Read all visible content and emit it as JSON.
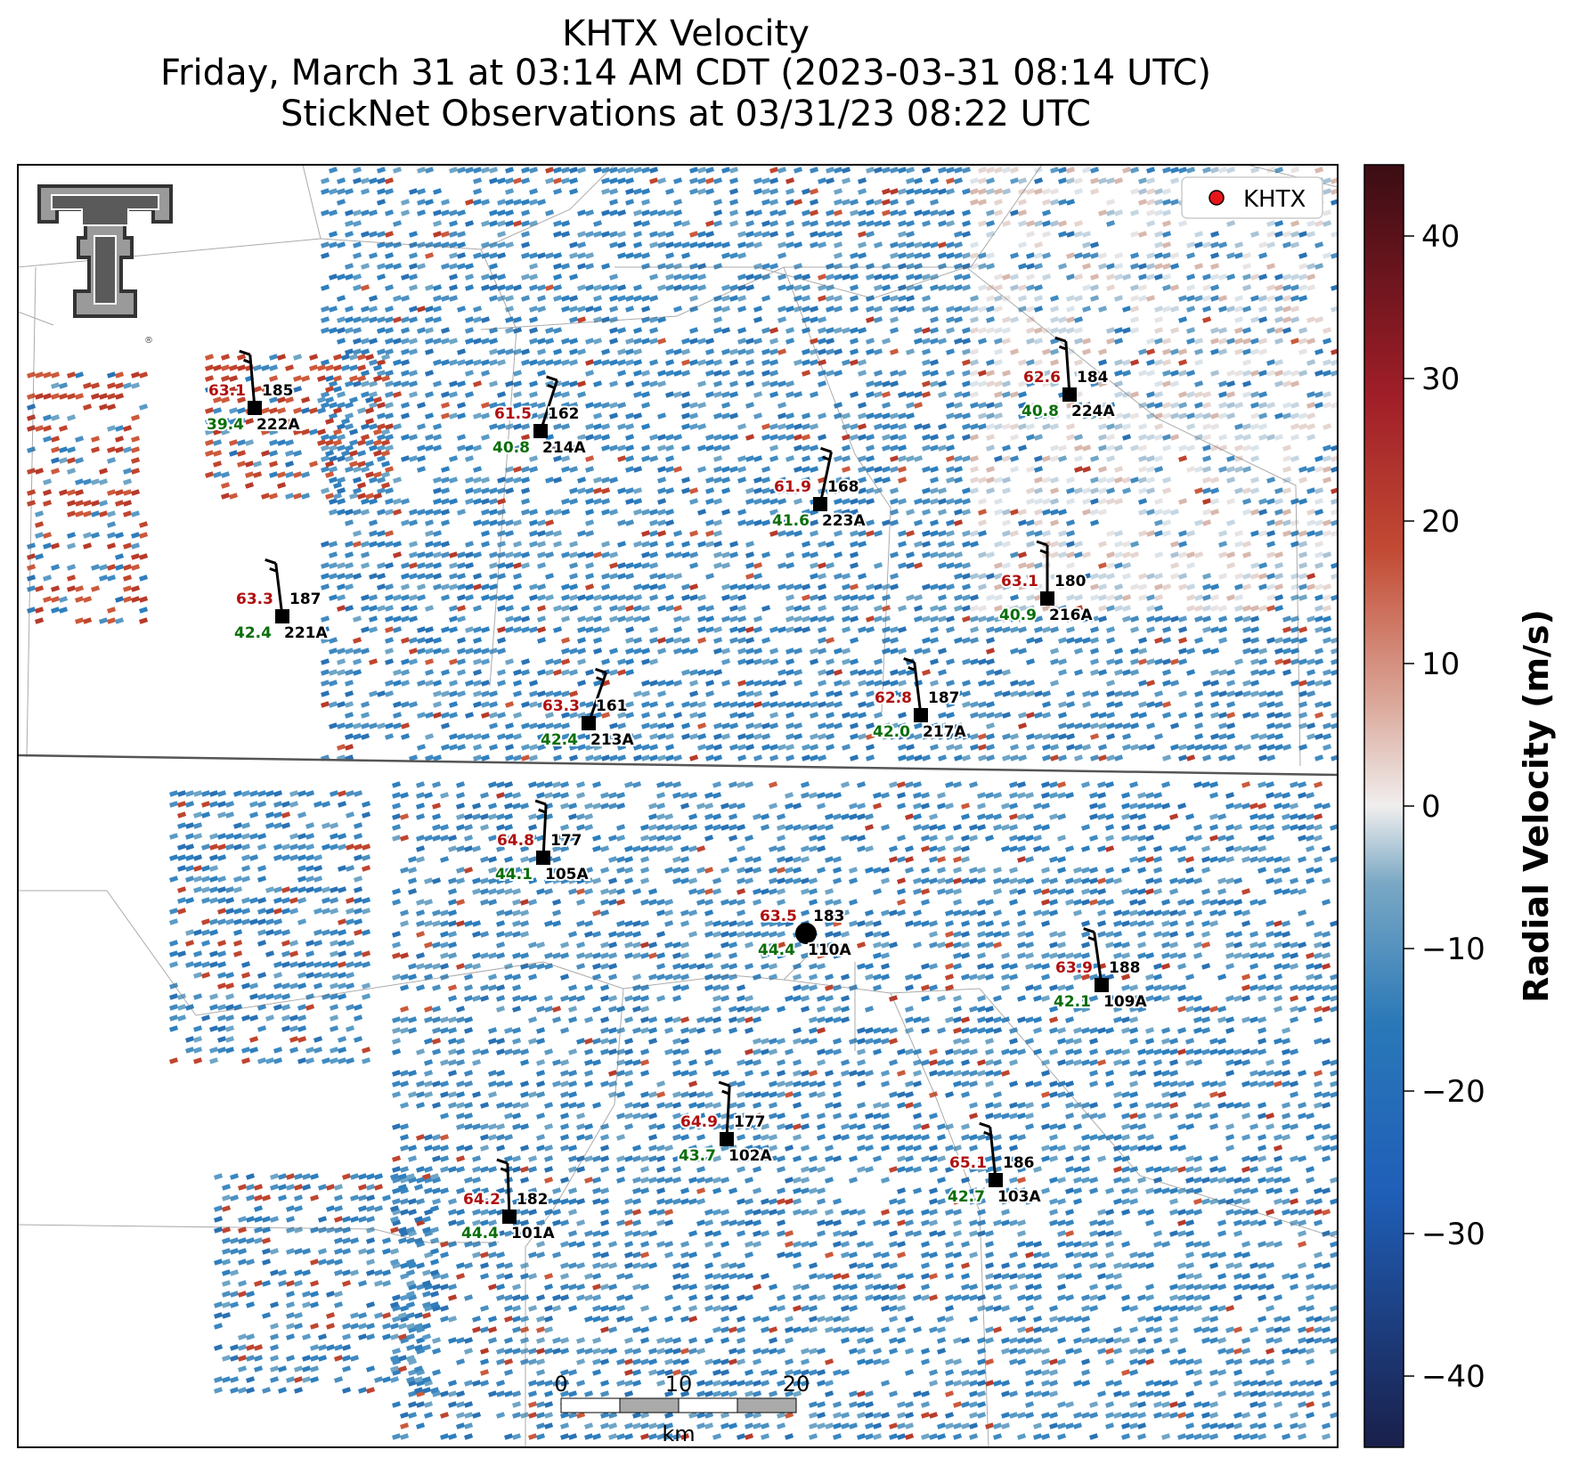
{
  "title": {
    "line1": "KHTX Velocity",
    "line2": "Friday, March 31 at 03:14 AM CDT (2023-03-31 08:14 UTC)",
    "line3": "StickNet Observations at 03/31/23 08:22 UTC"
  },
  "legend": {
    "label": "KHTX",
    "marker_color": "#e8141a"
  },
  "logo": {
    "name": "Texas Tech double-T logo",
    "registered": "®"
  },
  "colorbar": {
    "label": "Radial Velocity (m/s)",
    "min": -45,
    "max": 45,
    "ticks": [
      "40",
      "30",
      "20",
      "10",
      "0",
      "−10",
      "−20",
      "−30",
      "−40"
    ],
    "tick_values": [
      40,
      30,
      20,
      10,
      0,
      -10,
      -20,
      -30,
      -40
    ],
    "colors": {
      "neg_dark": "#1a1f4a",
      "neg": "#2a78b8",
      "neutral": "#f0eeee",
      "pos": "#c24a33",
      "pos_dark": "#3b0d14"
    }
  },
  "scale_bar": {
    "labels": [
      "0",
      "10",
      "20"
    ],
    "unit": "km"
  },
  "stations": [
    {
      "id": "222A",
      "temp": "63.1",
      "dewpoint": "39.4",
      "dir": "185"
    },
    {
      "id": "214A",
      "temp": "61.5",
      "dewpoint": "40.8",
      "dir": "162"
    },
    {
      "id": "224A",
      "temp": "62.6",
      "dewpoint": "40.8",
      "dir": "184"
    },
    {
      "id": "223A",
      "temp": "61.9",
      "dewpoint": "41.6",
      "dir": "168"
    },
    {
      "id": "221A",
      "temp": "63.3",
      "dewpoint": "42.4",
      "dir": "187"
    },
    {
      "id": "216A",
      "temp": "63.1",
      "dewpoint": "40.9",
      "dir": "180"
    },
    {
      "id": "213A",
      "temp": "63.3",
      "dewpoint": "42.4",
      "dir": "161"
    },
    {
      "id": "217A",
      "temp": "62.8",
      "dewpoint": "42.0",
      "dir": "187"
    },
    {
      "id": "105A",
      "temp": "64.8",
      "dewpoint": "44.1",
      "dir": "177"
    },
    {
      "id": "110A",
      "temp": "63.5",
      "dewpoint": "44.4",
      "dir": "183"
    },
    {
      "id": "109A",
      "temp": "63.9",
      "dewpoint": "42.1",
      "dir": "188"
    },
    {
      "id": "102A",
      "temp": "64.9",
      "dewpoint": "43.7",
      "dir": "177"
    },
    {
      "id": "103A",
      "temp": "65.1",
      "dewpoint": "42.7",
      "dir": "186"
    },
    {
      "id": "101A",
      "temp": "64.2",
      "dewpoint": "44.4",
      "dir": "182"
    }
  ],
  "text_colors": {
    "temp": "#b01010",
    "dewpoint": "#0a6e0a",
    "id": "#000000"
  }
}
